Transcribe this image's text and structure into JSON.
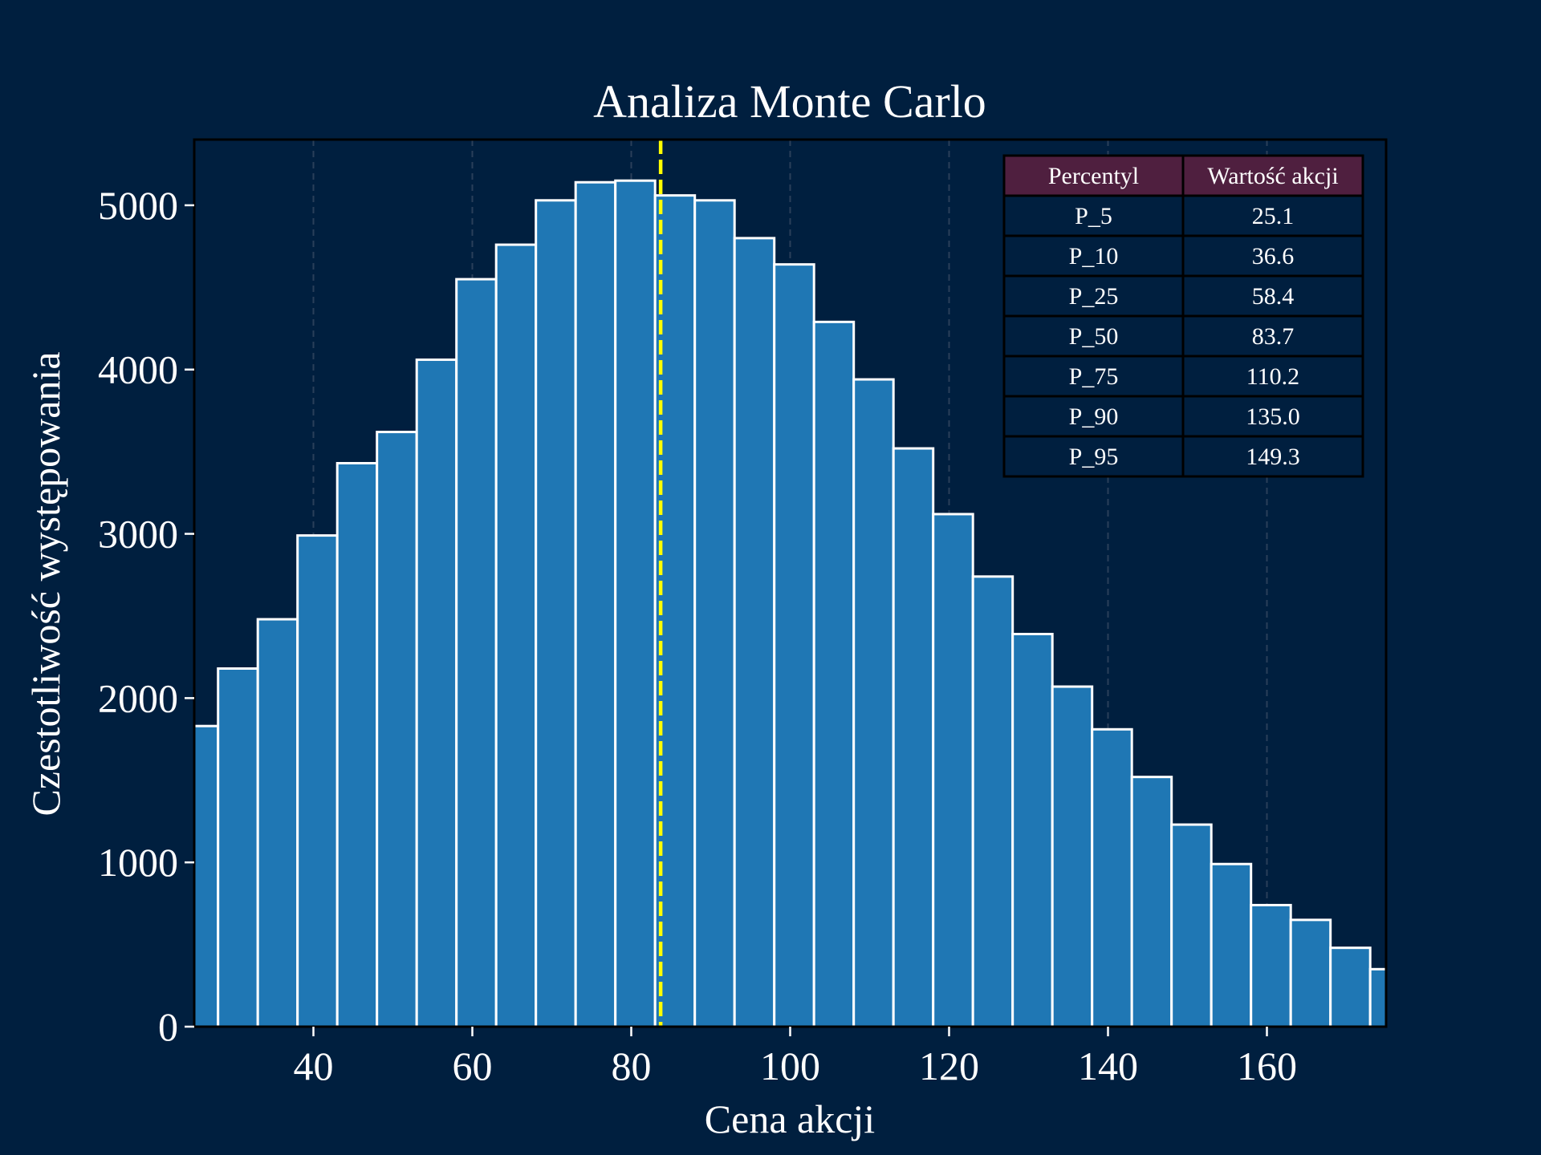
{
  "colors": {
    "background": "#001f3f",
    "bar_fill": "#1f77b4",
    "bar_edge": "#ffffff",
    "median_line": "#ffff00",
    "grid": "#2a3f5a",
    "table_header": "#4f1f3f",
    "table_cell": "#001f3f",
    "table_border": "#000000"
  },
  "chart_data": {
    "type": "bar",
    "title": "Analiza Monte Carlo",
    "xlabel": "Cena akcji",
    "ylabel": "Czestotliwość występowania",
    "xlim": [
      25,
      175
    ],
    "ylim": [
      0,
      5400
    ],
    "xticks": [
      40,
      60,
      80,
      100,
      120,
      140,
      160
    ],
    "yticks": [
      0,
      1000,
      2000,
      3000,
      4000,
      5000
    ],
    "grid": "vertical dashed",
    "bin_width": 5,
    "bin_start": 23,
    "values": [
      1830,
      2180,
      2480,
      2990,
      3430,
      3620,
      4060,
      4550,
      4760,
      5030,
      5140,
      5150,
      5060,
      5030,
      4800,
      4640,
      4290,
      3940,
      3520,
      3120,
      2740,
      2390,
      2070,
      1810,
      1520,
      1230,
      990,
      740,
      650,
      480,
      350
    ],
    "median_line": {
      "x": 83.7,
      "style": "dashed"
    },
    "table": {
      "headers": [
        "Percentyl",
        "Wartość akcji"
      ],
      "rows": [
        [
          "P_5",
          "25.1"
        ],
        [
          "P_10",
          "36.6"
        ],
        [
          "P_25",
          "58.4"
        ],
        [
          "P_50",
          "83.7"
        ],
        [
          "P_75",
          "110.2"
        ],
        [
          "P_90",
          "135.0"
        ],
        [
          "P_95",
          "149.3"
        ]
      ],
      "placement": "top-right"
    }
  }
}
